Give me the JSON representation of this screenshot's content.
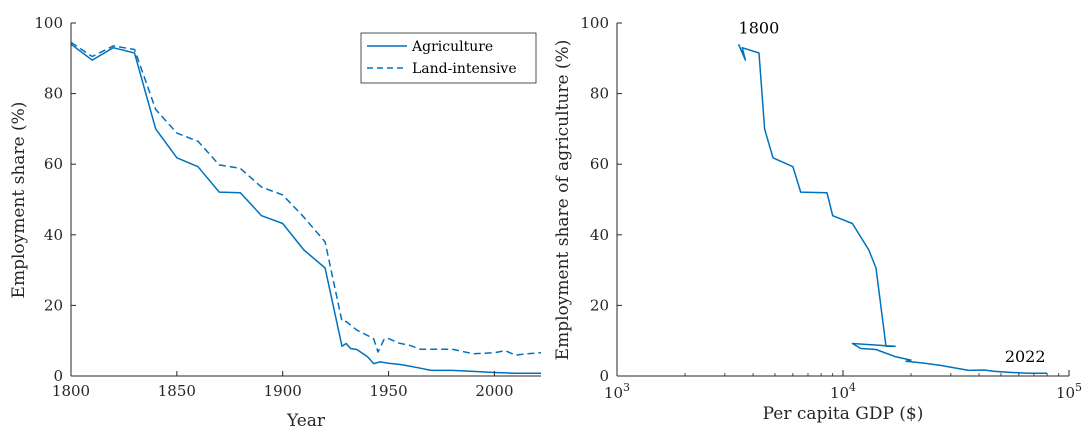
{
  "chart_data": [
    {
      "type": "line",
      "xlabel": "Year",
      "ylabel": "Employment share (%)",
      "xlim": [
        1800,
        2022
      ],
      "ylim": [
        0,
        100
      ],
      "xticks": [
        1800,
        1850,
        1900,
        1950,
        2000
      ],
      "yticks": [
        0,
        20,
        40,
        60,
        80,
        100
      ],
      "legend_position": "top-right",
      "series": [
        {
          "name": "Agriculture",
          "style": "solid",
          "color": "#0072BD",
          "points": [
            [
              1800,
              94
            ],
            [
              1810,
              89.5
            ],
            [
              1820,
              93
            ],
            [
              1830,
              91.5
            ],
            [
              1840,
              70
            ],
            [
              1850,
              61.8
            ],
            [
              1860,
              59.3
            ],
            [
              1870,
              52.1
            ],
            [
              1880,
              51.9
            ],
            [
              1890,
              45.4
            ],
            [
              1900,
              43.2
            ],
            [
              1910,
              35.7
            ],
            [
              1920,
              30.6
            ],
            [
              1928,
              8.4
            ],
            [
              1930,
              9.2
            ],
            [
              1932,
              7.8
            ],
            [
              1935,
              7.5
            ],
            [
              1940,
              5.5
            ],
            [
              1943,
              3.5
            ],
            [
              1946,
              4.0
            ],
            [
              1950,
              3.6
            ],
            [
              1955,
              3.3
            ],
            [
              1960,
              2.8
            ],
            [
              1965,
              2.2
            ],
            [
              1970,
              1.6
            ],
            [
              1980,
              1.6
            ],
            [
              1990,
              1.3
            ],
            [
              2000,
              1.0
            ],
            [
              2010,
              0.8
            ],
            [
              2022,
              0.8
            ]
          ]
        },
        {
          "name": "Land-intensive",
          "style": "dashed",
          "color": "#0072BD",
          "points": [
            [
              1800,
              94.5
            ],
            [
              1810,
              90.5
            ],
            [
              1820,
              93.5
            ],
            [
              1830,
              92.5
            ],
            [
              1840,
              75.5
            ],
            [
              1850,
              68.8
            ],
            [
              1860,
              66.5
            ],
            [
              1870,
              59.8
            ],
            [
              1880,
              58.8
            ],
            [
              1890,
              53.5
            ],
            [
              1900,
              51.3
            ],
            [
              1910,
              45
            ],
            [
              1920,
              38
            ],
            [
              1928,
              15.5
            ],
            [
              1930,
              15.4
            ],
            [
              1935,
              13
            ],
            [
              1940,
              11.5
            ],
            [
              1943,
              10.5
            ],
            [
              1945,
              6.8
            ],
            [
              1948,
              10.5
            ],
            [
              1950,
              10.6
            ],
            [
              1955,
              9.3
            ],
            [
              1960,
              8.7
            ],
            [
              1965,
              7.6
            ],
            [
              1970,
              7.6
            ],
            [
              1980,
              7.6
            ],
            [
              1990,
              6.3
            ],
            [
              2000,
              6.6
            ],
            [
              2005,
              7.2
            ],
            [
              2010,
              5.9
            ],
            [
              2015,
              6.3
            ],
            [
              2022,
              6.6
            ]
          ]
        }
      ]
    },
    {
      "type": "line",
      "xlabel": "Per capita GDP ($)",
      "ylabel": "Employment share of agriculture (%)",
      "xscale": "log",
      "xlim": [
        1000,
        100000
      ],
      "ylim": [
        0,
        100
      ],
      "xticks": [
        {
          "value": 1000,
          "base": "10",
          "exp": "3"
        },
        {
          "value": 10000,
          "base": "10",
          "exp": "4"
        },
        {
          "value": 100000,
          "base": "10",
          "exp": "5"
        }
      ],
      "yticks": [
        0,
        20,
        40,
        60,
        80,
        100
      ],
      "annotations": [
        {
          "text": "1800",
          "x": 3450,
          "y": 97
        },
        {
          "text": "2022",
          "x": 52000,
          "y": 4
        }
      ],
      "series": [
        {
          "color": "#0072BD",
          "points": [
            [
              3450,
              94
            ],
            [
              3700,
              89.5
            ],
            [
              3580,
              93
            ],
            [
              4250,
              91.5
            ],
            [
              4500,
              70
            ],
            [
              4900,
              61.8
            ],
            [
              6000,
              59.3
            ],
            [
              6500,
              52.1
            ],
            [
              8500,
              51.9
            ],
            [
              9000,
              45.4
            ],
            [
              11000,
              43.2
            ],
            [
              13000,
              35.7
            ],
            [
              14000,
              30.6
            ],
            [
              15500,
              8.4
            ],
            [
              17000,
              8.4
            ],
            [
              11000,
              9.2
            ],
            [
              12000,
              7.8
            ],
            [
              14000,
              7.5
            ],
            [
              17000,
              5.5
            ],
            [
              20000,
              4.5
            ],
            [
              19000,
              4.2
            ],
            [
              23000,
              3.6
            ],
            [
              27000,
              3.0
            ],
            [
              33000,
              2.0
            ],
            [
              36000,
              1.6
            ],
            [
              42000,
              1.7
            ],
            [
              47000,
              1.3
            ],
            [
              56000,
              1.0
            ],
            [
              66000,
              0.8
            ],
            [
              80000,
              0.8
            ]
          ]
        }
      ]
    }
  ]
}
